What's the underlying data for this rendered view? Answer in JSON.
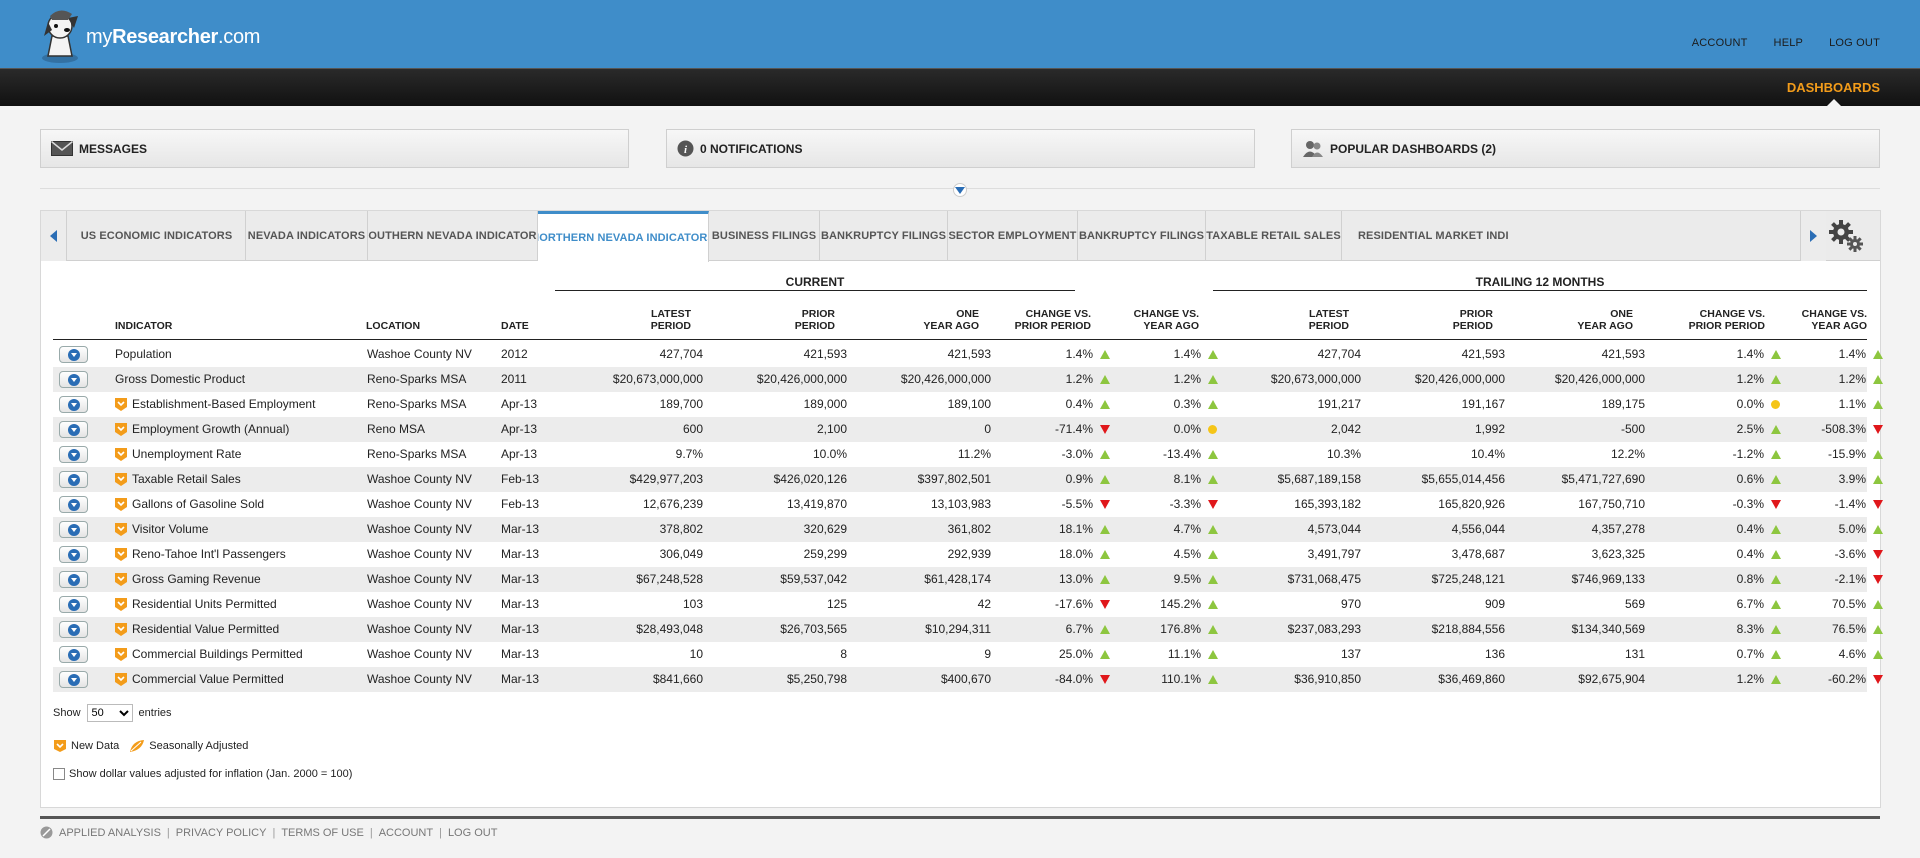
{
  "brand": {
    "name_light": "my",
    "name_bold": "Researcher",
    "name_suffix": ".com"
  },
  "topnav": [
    "ACCOUNT",
    "HELP",
    "LOG OUT"
  ],
  "subnav": {
    "dashboards": "DASHBOARDS"
  },
  "panels": {
    "messages": "MESSAGES",
    "notifications": "0 NOTIFICATIONS",
    "popular": "POPULAR DASHBOARDS (2)"
  },
  "tabs": [
    {
      "label": "US ECONOMIC INDICATORS",
      "active": false
    },
    {
      "label": "NEVADA INDICATORS",
      "active": false
    },
    {
      "label": "SOUTHERN NEVADA INDICATORS",
      "active": false
    },
    {
      "label": "NORTHERN NEVADA INDICATORS",
      "active": true
    },
    {
      "label": "BUSINESS FILINGS",
      "active": false
    },
    {
      "label": "BANKRUPTCY FILINGS",
      "active": false
    },
    {
      "label": "SECTOR EMPLOYMENT",
      "active": false
    },
    {
      "label": "BANKRUPTCY FILINGS",
      "active": false
    },
    {
      "label": "TAXABLE RETAIL SALES",
      "active": false
    },
    {
      "label": "RESIDENTIAL MARKET INDICATORS",
      "active": false
    }
  ],
  "table": {
    "group_current": "CURRENT",
    "group_trailing": "TRAILING 12 MONTHS",
    "headers": {
      "indicator": "INDICATOR",
      "location": "LOCATION",
      "date": "DATE",
      "latest_1": "LATEST",
      "latest_2": "PERIOD",
      "prior_1": "PRIOR",
      "prior_2": "PERIOD",
      "oneyear_1": "ONE",
      "oneyear_2": "YEAR AGO",
      "chgprior_1": "CHANGE VS.",
      "chgprior_2": "PRIOR PERIOD",
      "chgyear_1": "CHANGE VS.",
      "chgyear_2": "YEAR AGO"
    },
    "rows": [
      {
        "indicator": "Population",
        "new": false,
        "location": "Washoe County NV",
        "date": "2012",
        "c_latest": "427,704",
        "c_prior": "421,593",
        "c_year": "421,593",
        "c_chg_p": "1.4%",
        "c_chg_p_dir": "up",
        "c_chg_y": "1.4%",
        "c_chg_y_dir": "up",
        "t_latest": "427,704",
        "t_prior": "421,593",
        "t_year": "421,593",
        "t_chg_p": "1.4%",
        "t_chg_p_dir": "up",
        "t_chg_y": "1.4%",
        "t_chg_y_dir": "up"
      },
      {
        "indicator": "Gross Domestic Product",
        "new": false,
        "location": "Reno-Sparks MSA",
        "date": "2011",
        "c_latest": "$20,673,000,000",
        "c_prior": "$20,426,000,000",
        "c_year": "$20,426,000,000",
        "c_chg_p": "1.2%",
        "c_chg_p_dir": "up",
        "c_chg_y": "1.2%",
        "c_chg_y_dir": "up",
        "t_latest": "$20,673,000,000",
        "t_prior": "$20,426,000,000",
        "t_year": "$20,426,000,000",
        "t_chg_p": "1.2%",
        "t_chg_p_dir": "up",
        "t_chg_y": "1.2%",
        "t_chg_y_dir": "up"
      },
      {
        "indicator": "Establishment-Based Employment",
        "new": true,
        "location": "Reno-Sparks MSA",
        "date": "Apr-13",
        "c_latest": "189,700",
        "c_prior": "189,000",
        "c_year": "189,100",
        "c_chg_p": "0.4%",
        "c_chg_p_dir": "up",
        "c_chg_y": "0.3%",
        "c_chg_y_dir": "up",
        "t_latest": "191,217",
        "t_prior": "191,167",
        "t_year": "189,175",
        "t_chg_p": "0.0%",
        "t_chg_p_dir": "flat",
        "t_chg_y": "1.1%",
        "t_chg_y_dir": "up"
      },
      {
        "indicator": "Employment Growth (Annual)",
        "new": true,
        "location": "Reno MSA",
        "date": "Apr-13",
        "c_latest": "600",
        "c_prior": "2,100",
        "c_year": "0",
        "c_chg_p": "-71.4%",
        "c_chg_p_dir": "down",
        "c_chg_y": "0.0%",
        "c_chg_y_dir": "flat",
        "t_latest": "2,042",
        "t_prior": "1,992",
        "t_year": "-500",
        "t_chg_p": "2.5%",
        "t_chg_p_dir": "up",
        "t_chg_y": "-508.3%",
        "t_chg_y_dir": "down"
      },
      {
        "indicator": "Unemployment Rate",
        "new": true,
        "location": "Reno-Sparks MSA",
        "date": "Apr-13",
        "c_latest": "9.7%",
        "c_prior": "10.0%",
        "c_year": "11.2%",
        "c_chg_p": "-3.0%",
        "c_chg_p_dir": "up",
        "c_chg_y": "-13.4%",
        "c_chg_y_dir": "up",
        "t_latest": "10.3%",
        "t_prior": "10.4%",
        "t_year": "12.2%",
        "t_chg_p": "-1.2%",
        "t_chg_p_dir": "up",
        "t_chg_y": "-15.9%",
        "t_chg_y_dir": "up"
      },
      {
        "indicator": "Taxable Retail Sales",
        "new": true,
        "location": "Washoe County NV",
        "date": "Feb-13",
        "c_latest": "$429,977,203",
        "c_prior": "$426,020,126",
        "c_year": "$397,802,501",
        "c_chg_p": "0.9%",
        "c_chg_p_dir": "up",
        "c_chg_y": "8.1%",
        "c_chg_y_dir": "up",
        "t_latest": "$5,687,189,158",
        "t_prior": "$5,655,014,456",
        "t_year": "$5,471,727,690",
        "t_chg_p": "0.6%",
        "t_chg_p_dir": "up",
        "t_chg_y": "3.9%",
        "t_chg_y_dir": "up"
      },
      {
        "indicator": "Gallons of Gasoline Sold",
        "new": true,
        "location": "Washoe County NV",
        "date": "Feb-13",
        "c_latest": "12,676,239",
        "c_prior": "13,419,870",
        "c_year": "13,103,983",
        "c_chg_p": "-5.5%",
        "c_chg_p_dir": "down",
        "c_chg_y": "-3.3%",
        "c_chg_y_dir": "down",
        "t_latest": "165,393,182",
        "t_prior": "165,820,926",
        "t_year": "167,750,710",
        "t_chg_p": "-0.3%",
        "t_chg_p_dir": "down",
        "t_chg_y": "-1.4%",
        "t_chg_y_dir": "down"
      },
      {
        "indicator": "Visitor Volume",
        "new": true,
        "location": "Washoe County NV",
        "date": "Mar-13",
        "c_latest": "378,802",
        "c_prior": "320,629",
        "c_year": "361,802",
        "c_chg_p": "18.1%",
        "c_chg_p_dir": "up",
        "c_chg_y": "4.7%",
        "c_chg_y_dir": "up",
        "t_latest": "4,573,044",
        "t_prior": "4,556,044",
        "t_year": "4,357,278",
        "t_chg_p": "0.4%",
        "t_chg_p_dir": "up",
        "t_chg_y": "5.0%",
        "t_chg_y_dir": "up"
      },
      {
        "indicator": "Reno-Tahoe Int'l Passengers",
        "new": true,
        "location": "Washoe County NV",
        "date": "Mar-13",
        "c_latest": "306,049",
        "c_prior": "259,299",
        "c_year": "292,939",
        "c_chg_p": "18.0%",
        "c_chg_p_dir": "up",
        "c_chg_y": "4.5%",
        "c_chg_y_dir": "up",
        "t_latest": "3,491,797",
        "t_prior": "3,478,687",
        "t_year": "3,623,325",
        "t_chg_p": "0.4%",
        "t_chg_p_dir": "up",
        "t_chg_y": "-3.6%",
        "t_chg_y_dir": "down"
      },
      {
        "indicator": "Gross Gaming Revenue",
        "new": true,
        "location": "Washoe County NV",
        "date": "Mar-13",
        "c_latest": "$67,248,528",
        "c_prior": "$59,537,042",
        "c_year": "$61,428,174",
        "c_chg_p": "13.0%",
        "c_chg_p_dir": "up",
        "c_chg_y": "9.5%",
        "c_chg_y_dir": "up",
        "t_latest": "$731,068,475",
        "t_prior": "$725,248,121",
        "t_year": "$746,969,133",
        "t_chg_p": "0.8%",
        "t_chg_p_dir": "up",
        "t_chg_y": "-2.1%",
        "t_chg_y_dir": "down"
      },
      {
        "indicator": "Residential Units Permitted",
        "new": true,
        "location": "Washoe County NV",
        "date": "Mar-13",
        "c_latest": "103",
        "c_prior": "125",
        "c_year": "42",
        "c_chg_p": "-17.6%",
        "c_chg_p_dir": "down",
        "c_chg_y": "145.2%",
        "c_chg_y_dir": "up",
        "t_latest": "970",
        "t_prior": "909",
        "t_year": "569",
        "t_chg_p": "6.7%",
        "t_chg_p_dir": "up",
        "t_chg_y": "70.5%",
        "t_chg_y_dir": "up"
      },
      {
        "indicator": "Residential Value Permitted",
        "new": true,
        "location": "Washoe County NV",
        "date": "Mar-13",
        "c_latest": "$28,493,048",
        "c_prior": "$26,703,565",
        "c_year": "$10,294,311",
        "c_chg_p": "6.7%",
        "c_chg_p_dir": "up",
        "c_chg_y": "176.8%",
        "c_chg_y_dir": "up",
        "t_latest": "$237,083,293",
        "t_prior": "$218,884,556",
        "t_year": "$134,340,569",
        "t_chg_p": "8.3%",
        "t_chg_p_dir": "up",
        "t_chg_y": "76.5%",
        "t_chg_y_dir": "up"
      },
      {
        "indicator": "Commercial Buildings Permitted",
        "new": true,
        "location": "Washoe County NV",
        "date": "Mar-13",
        "c_latest": "10",
        "c_prior": "8",
        "c_year": "9",
        "c_chg_p": "25.0%",
        "c_chg_p_dir": "up",
        "c_chg_y": "11.1%",
        "c_chg_y_dir": "up",
        "t_latest": "137",
        "t_prior": "136",
        "t_year": "131",
        "t_chg_p": "0.7%",
        "t_chg_p_dir": "up",
        "t_chg_y": "4.6%",
        "t_chg_y_dir": "up"
      },
      {
        "indicator": "Commercial Value Permitted",
        "new": true,
        "location": "Washoe County NV",
        "date": "Mar-13",
        "c_latest": "$841,660",
        "c_prior": "$5,250,798",
        "c_year": "$400,670",
        "c_chg_p": "-84.0%",
        "c_chg_p_dir": "down",
        "c_chg_y": "110.1%",
        "c_chg_y_dir": "up",
        "t_latest": "$36,910,850",
        "t_prior": "$36,469,860",
        "t_year": "$92,675,904",
        "t_chg_p": "1.2%",
        "t_chg_p_dir": "up",
        "t_chg_y": "-60.2%",
        "t_chg_y_dir": "down"
      }
    ]
  },
  "show_entries": {
    "prefix": "Show",
    "value": "50",
    "suffix": "entries"
  },
  "legend": {
    "new_data": "New Data",
    "seasonal": "Seasonally Adjusted"
  },
  "inflation_label": "Show dollar values adjusted for inflation (Jan. 2000 = 100)",
  "footer": [
    "APPLIED ANALYSIS",
    "PRIVACY POLICY",
    "TERMS OF USE",
    "ACCOUNT",
    "LOG OUT"
  ],
  "colors": {
    "brand_blue": "#3f8dc9",
    "accent_orange": "#f39c1a",
    "up_green": "#8dc63f",
    "down_red": "#e0171b",
    "flat_yellow": "#f5c518"
  },
  "icons": {
    "messages": "envelope-icon",
    "notifications": "info-icon",
    "popular": "users-icon",
    "settings": "gear-icon"
  }
}
